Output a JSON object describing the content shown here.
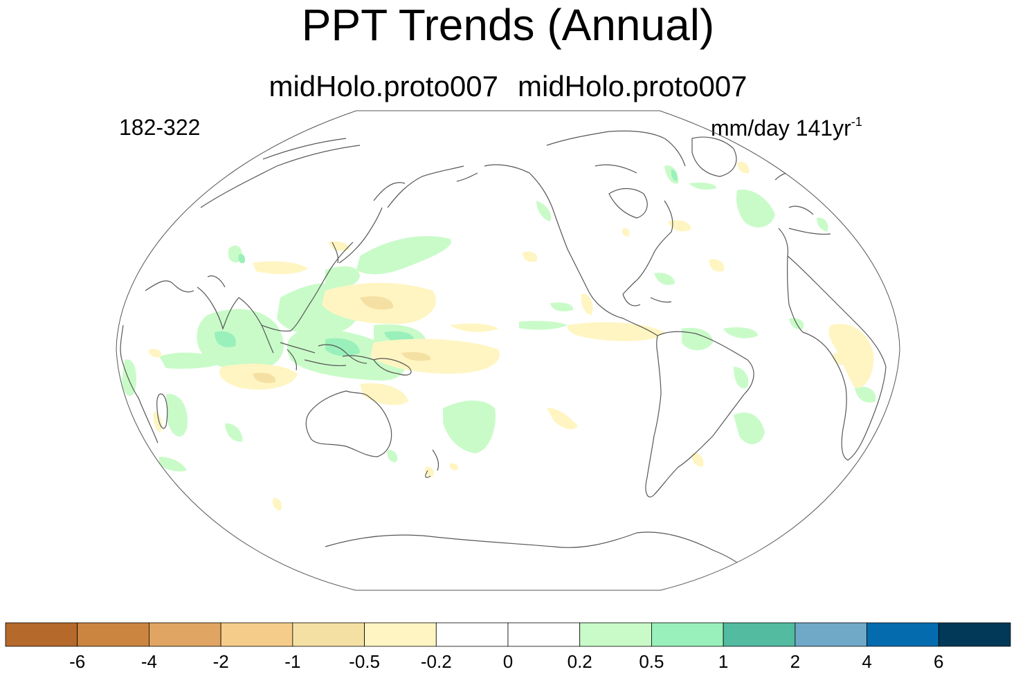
{
  "title": "PPT Trends (Annual)",
  "subtitle_left": "midHolo.proto007",
  "subtitle_right": "midHolo.proto007",
  "period": "182-322",
  "units_main": "mm/day 141yr",
  "units_exponent": "-1",
  "colorbar": {
    "labels": [
      "-6",
      "-4",
      "-2",
      "-1",
      "-0.5",
      "-0.2",
      "0",
      "0.2",
      "0.5",
      "1",
      "2",
      "4",
      "6"
    ],
    "colors": [
      "#b5692b",
      "#cc8540",
      "#e0a562",
      "#f5cc8a",
      "#f5e0a3",
      "#fff5c2",
      "#ffffff",
      "#ffffff",
      "#c9fbc9",
      "#9af0ba",
      "#52bba0",
      "#70a8c8",
      "#046cae",
      "#023858"
    ]
  },
  "map": {
    "projection": "Robinson",
    "center_longitude": 180,
    "positive_color": "#c9fbc9",
    "positive_strong_color": "#9af0ba",
    "negative_color": "#fff5c2",
    "negative_strong_color": "#f5e0a3",
    "coastline_color": "#555555"
  }
}
